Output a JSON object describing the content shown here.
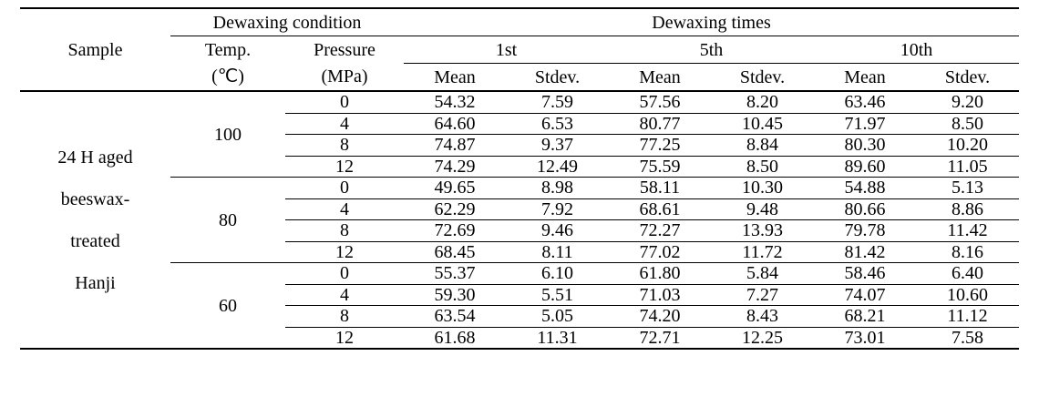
{
  "header": {
    "sample": "Sample",
    "condition": "Dewaxing condition",
    "times": "Dewaxing times",
    "temp": [
      "Temp.",
      "(℃)"
    ],
    "pressure": [
      "Pressure",
      "(MPa)"
    ],
    "rounds": [
      "1st",
      "5th",
      "10th"
    ],
    "stats": [
      "Mean",
      "Stdev."
    ]
  },
  "sample_lines": [
    "24 H aged",
    "beeswax-",
    "treated",
    "Hanji"
  ],
  "groups": [
    {
      "temp": "100",
      "rows": [
        {
          "pressure": "0",
          "values": [
            "54.32",
            "7.59",
            "57.56",
            "8.20",
            "63.46",
            "9.20"
          ]
        },
        {
          "pressure": "4",
          "values": [
            "64.60",
            "6.53",
            "80.77",
            "10.45",
            "71.97",
            "8.50"
          ]
        },
        {
          "pressure": "8",
          "values": [
            "74.87",
            "9.37",
            "77.25",
            "8.84",
            "80.30",
            "10.20"
          ]
        },
        {
          "pressure": "12",
          "values": [
            "74.29",
            "12.49",
            "75.59",
            "8.50",
            "89.60",
            "11.05"
          ]
        }
      ]
    },
    {
      "temp": "80",
      "rows": [
        {
          "pressure": "0",
          "values": [
            "49.65",
            "8.98",
            "58.11",
            "10.30",
            "54.88",
            "5.13"
          ]
        },
        {
          "pressure": "4",
          "values": [
            "62.29",
            "7.92",
            "68.61",
            "9.48",
            "80.66",
            "8.86"
          ]
        },
        {
          "pressure": "8",
          "values": [
            "72.69",
            "9.46",
            "72.27",
            "13.93",
            "79.78",
            "11.42"
          ]
        },
        {
          "pressure": "12",
          "values": [
            "68.45",
            "8.11",
            "77.02",
            "11.72",
            "81.42",
            "8.16"
          ]
        }
      ]
    },
    {
      "temp": "60",
      "rows": [
        {
          "pressure": "0",
          "values": [
            "55.37",
            "6.10",
            "61.80",
            "5.84",
            "58.46",
            "6.40"
          ]
        },
        {
          "pressure": "4",
          "values": [
            "59.30",
            "5.51",
            "71.03",
            "7.27",
            "74.07",
            "10.60"
          ]
        },
        {
          "pressure": "8",
          "values": [
            "63.54",
            "5.05",
            "74.20",
            "8.43",
            "68.21",
            "11.12"
          ]
        },
        {
          "pressure": "12",
          "values": [
            "61.68",
            "11.31",
            "72.71",
            "12.25",
            "73.01",
            "7.58"
          ]
        }
      ]
    }
  ]
}
